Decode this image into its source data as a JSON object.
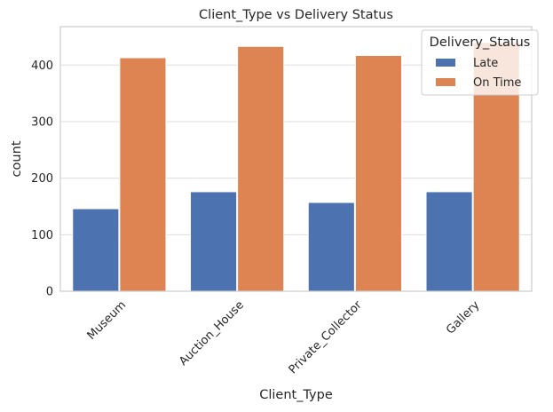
{
  "chart_data": {
    "type": "bar",
    "title": "Client_Type vs Delivery Status",
    "xlabel": "Client_Type",
    "ylabel": "count",
    "categories": [
      "Museum",
      "Auction_House",
      "Private_Collector",
      "Gallery"
    ],
    "series": [
      {
        "name": "Late",
        "values": [
          146,
          176,
          157,
          176
        ],
        "color": "#4c72b0"
      },
      {
        "name": "On Time",
        "values": [
          413,
          433,
          417,
          440
        ],
        "color": "#dd8452"
      }
    ],
    "yticks": [
      "0",
      "100",
      "200",
      "300",
      "400"
    ],
    "ylim": [
      0,
      468
    ],
    "grid": true,
    "legend": {
      "title": "Delivery_Status",
      "placement": "top-right"
    }
  }
}
